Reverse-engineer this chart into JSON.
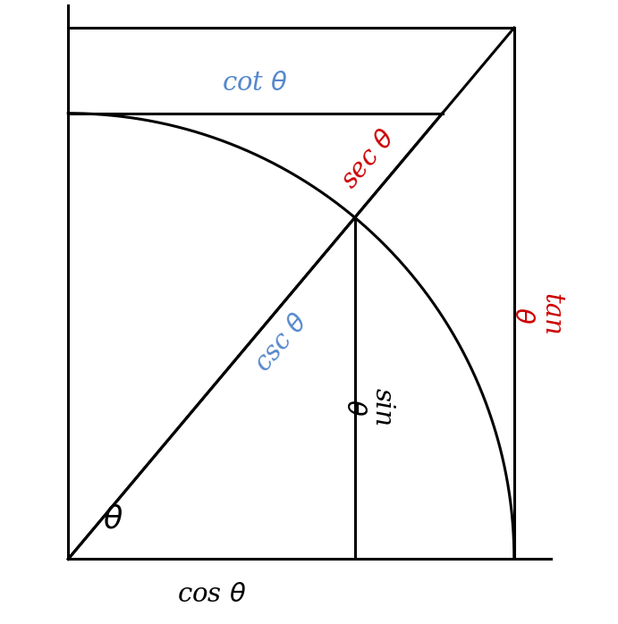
{
  "theta_deg": 50,
  "bg_color": "#ffffff",
  "line_color": "#000000",
  "red_color": "#cc0000",
  "blue_color": "#5588cc",
  "font_size_labels": 21,
  "figsize": [
    6.91,
    6.98
  ],
  "dpi": 100
}
